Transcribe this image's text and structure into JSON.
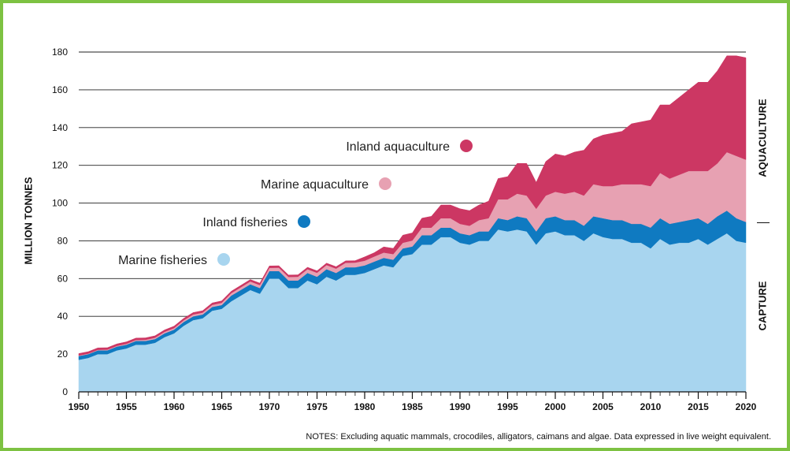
{
  "chart_data": {
    "type": "area",
    "stacked": true,
    "ylabel": "MILLION TONNES",
    "ylim": [
      0,
      180
    ],
    "yticks": [
      0,
      20,
      40,
      60,
      80,
      100,
      120,
      140,
      160,
      180
    ],
    "xlim": [
      1950,
      2020
    ],
    "xticks": [
      1950,
      1955,
      1960,
      1965,
      1970,
      1975,
      1980,
      1985,
      1990,
      1995,
      2000,
      2005,
      2010,
      2015,
      2020
    ],
    "grid": "horizontal",
    "x": [
      1950,
      1951,
      1952,
      1953,
      1954,
      1955,
      1956,
      1957,
      1958,
      1959,
      1960,
      1961,
      1962,
      1963,
      1964,
      1965,
      1966,
      1967,
      1968,
      1969,
      1970,
      1971,
      1972,
      1973,
      1974,
      1975,
      1976,
      1977,
      1978,
      1979,
      1980,
      1981,
      1982,
      1983,
      1984,
      1985,
      1986,
      1987,
      1988,
      1989,
      1990,
      1991,
      1992,
      1993,
      1994,
      1995,
      1996,
      1997,
      1998,
      1999,
      2000,
      2001,
      2002,
      2003,
      2004,
      2005,
      2006,
      2007,
      2008,
      2009,
      2010,
      2011,
      2012,
      2013,
      2014,
      2015,
      2016,
      2017,
      2018,
      2019,
      2020
    ],
    "series": [
      {
        "name": "Marine fisheries",
        "color": "#a8d5ef",
        "values": [
          17,
          18,
          20,
          20,
          22,
          23,
          25,
          25,
          26,
          29,
          31,
          35,
          38,
          39,
          43,
          44,
          48,
          51,
          54,
          52,
          60,
          60,
          55,
          55,
          59,
          57,
          61,
          59,
          62,
          62,
          63,
          65,
          67,
          66,
          72,
          73,
          78,
          78,
          82,
          82,
          79,
          78,
          80,
          80,
          86,
          85,
          86,
          85,
          78,
          84,
          85,
          83,
          83,
          80,
          84,
          82,
          81,
          81,
          79,
          79,
          76,
          81,
          78,
          79,
          79,
          81,
          78,
          81,
          84,
          80,
          79
        ]
      },
      {
        "name": "Inland fisheries",
        "color": "#0f7ac1",
        "values": [
          2,
          2,
          2,
          2,
          2,
          2,
          2,
          2,
          2,
          2,
          2,
          2,
          2,
          2,
          2,
          2,
          3,
          3,
          3,
          3,
          4,
          4,
          4,
          4,
          4,
          4,
          4,
          4,
          4,
          4,
          4,
          4,
          4,
          4,
          4,
          4,
          5,
          5,
          5,
          5,
          5,
          5,
          5,
          5,
          6,
          6,
          7,
          7,
          7,
          8,
          8,
          8,
          8,
          8,
          9,
          10,
          10,
          10,
          10,
          10,
          11,
          11,
          11,
          11,
          12,
          11,
          11,
          12,
          12,
          12,
          11
        ]
      },
      {
        "name": "Marine aquaculture",
        "color": "#e7a1b2",
        "values": [
          0.3,
          0.3,
          0.3,
          0.4,
          0.4,
          0.5,
          0.5,
          0.6,
          0.7,
          0.8,
          0.8,
          0.9,
          1,
          1,
          1.1,
          1.2,
          1.3,
          1.4,
          1.5,
          1.6,
          1.7,
          1.8,
          1.9,
          2,
          2,
          2.1,
          2.2,
          2.3,
          2.4,
          2.5,
          2.5,
          2.7,
          2.8,
          3,
          3,
          3.2,
          4,
          4,
          5,
          5,
          5,
          5,
          6,
          7,
          10,
          11,
          12,
          12,
          12,
          12,
          13,
          14,
          15,
          16,
          17,
          17,
          18,
          19,
          21,
          21,
          22,
          24,
          24,
          25,
          26,
          25,
          28,
          28,
          31,
          33,
          33
        ]
      },
      {
        "name": "Inland aquaculture",
        "color": "#cc3763",
        "values": [
          1,
          1,
          1,
          1,
          1,
          1,
          1,
          1,
          1,
          1,
          1,
          1,
          1,
          1,
          1,
          1,
          1,
          1,
          1,
          1,
          1,
          1,
          1,
          1,
          1,
          1,
          1,
          1,
          1,
          1,
          2,
          2,
          3,
          3,
          4,
          4,
          5,
          6,
          7,
          7,
          8,
          8,
          8,
          9,
          11,
          12,
          16,
          17,
          14,
          18,
          20,
          20,
          21,
          24,
          24,
          27,
          28,
          28,
          32,
          33,
          35,
          36,
          39,
          41,
          43,
          47,
          47,
          49,
          51,
          53,
          54
        ]
      }
    ],
    "legend": [
      "Inland aquaculture",
      "Marine aquaculture",
      "Inland fisheries",
      "Marine fisheries"
    ],
    "side_labels": {
      "upper": "AQUACULTURE",
      "lower": "CAPTURE"
    },
    "notes": "NOTES: Excluding aquatic mammals, crocodiles, alligators, caimans and algae. Data expressed in live weight equivalent."
  }
}
